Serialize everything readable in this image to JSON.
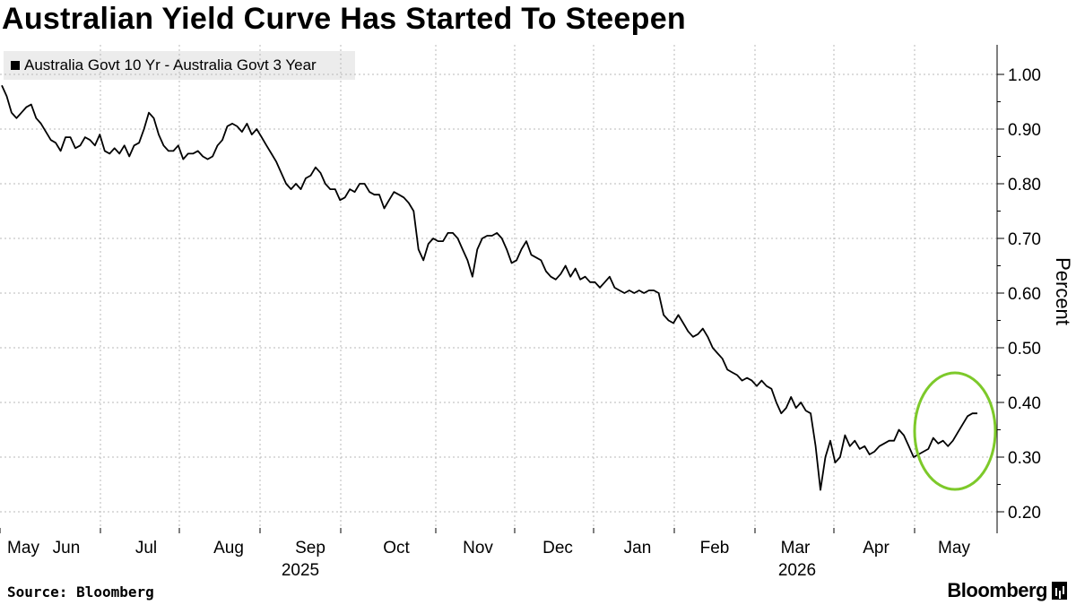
{
  "title": "Australian Yield Curve Has Started To Steepen",
  "source": "Source: Bloomberg",
  "brand": "Bloomberg",
  "colors": {
    "line": "#000000",
    "highlight": "#7dc92a",
    "grid": "#b8b8b8",
    "legend_bg": "#ececec"
  },
  "chart_data": {
    "type": "line",
    "title": "Australian Yield Curve Has Started To Steepen",
    "ylabel": "Percent",
    "ylim": [
      0.2,
      1.0
    ],
    "yticks": [
      "1.00",
      "0.90",
      "0.80",
      "0.70",
      "0.60",
      "0.50",
      "0.40",
      "0.30",
      "0.20"
    ],
    "x_month_labels": [
      "May",
      "Jun",
      "Jul",
      "Aug",
      "Sep",
      "Oct",
      "Nov",
      "Dec",
      "Jan",
      "Feb",
      "Mar",
      "Apr",
      "May"
    ],
    "x_year_labels": [
      "2025",
      "2026"
    ],
    "legend_position": "top-left",
    "grid": true,
    "annotation": "green circle highlighting recent steepening in May 2026",
    "series": [
      {
        "name": "Australia Govt 10 Yr - Australia Govt 3 Year",
        "values": [
          0.98,
          0.96,
          0.93,
          0.92,
          0.93,
          0.94,
          0.945,
          0.92,
          0.91,
          0.895,
          0.88,
          0.875,
          0.86,
          0.885,
          0.885,
          0.865,
          0.87,
          0.885,
          0.88,
          0.87,
          0.89,
          0.86,
          0.855,
          0.865,
          0.855,
          0.87,
          0.85,
          0.87,
          0.875,
          0.9,
          0.93,
          0.92,
          0.89,
          0.87,
          0.86,
          0.86,
          0.87,
          0.845,
          0.855,
          0.855,
          0.86,
          0.85,
          0.845,
          0.85,
          0.87,
          0.88,
          0.905,
          0.91,
          0.905,
          0.895,
          0.91,
          0.89,
          0.9,
          0.885,
          0.87,
          0.855,
          0.84,
          0.82,
          0.8,
          0.79,
          0.8,
          0.79,
          0.81,
          0.815,
          0.83,
          0.82,
          0.8,
          0.79,
          0.79,
          0.77,
          0.775,
          0.79,
          0.785,
          0.8,
          0.8,
          0.785,
          0.78,
          0.78,
          0.755,
          0.77,
          0.785,
          0.78,
          0.775,
          0.765,
          0.75,
          0.68,
          0.66,
          0.69,
          0.7,
          0.695,
          0.695,
          0.71,
          0.71,
          0.7,
          0.68,
          0.66,
          0.63,
          0.68,
          0.7,
          0.705,
          0.705,
          0.71,
          0.7,
          0.68,
          0.655,
          0.66,
          0.68,
          0.695,
          0.67,
          0.665,
          0.66,
          0.64,
          0.63,
          0.625,
          0.635,
          0.65,
          0.63,
          0.645,
          0.625,
          0.63,
          0.62,
          0.62,
          0.61,
          0.62,
          0.63,
          0.61,
          0.605,
          0.6,
          0.605,
          0.6,
          0.605,
          0.6,
          0.605,
          0.605,
          0.6,
          0.56,
          0.55,
          0.545,
          0.56,
          0.545,
          0.53,
          0.52,
          0.525,
          0.535,
          0.52,
          0.5,
          0.49,
          0.48,
          0.46,
          0.455,
          0.45,
          0.44,
          0.445,
          0.44,
          0.43,
          0.44,
          0.43,
          0.425,
          0.4,
          0.38,
          0.39,
          0.41,
          0.39,
          0.4,
          0.385,
          0.38,
          0.32,
          0.24,
          0.3,
          0.33,
          0.29,
          0.3,
          0.34,
          0.32,
          0.33,
          0.315,
          0.32,
          0.305,
          0.31,
          0.32,
          0.325,
          0.33,
          0.33,
          0.35,
          0.34,
          0.32,
          0.3,
          0.305,
          0.31,
          0.315,
          0.335,
          0.325,
          0.33,
          0.32,
          0.33,
          0.345,
          0.36,
          0.375,
          0.38,
          0.38
        ]
      }
    ]
  }
}
